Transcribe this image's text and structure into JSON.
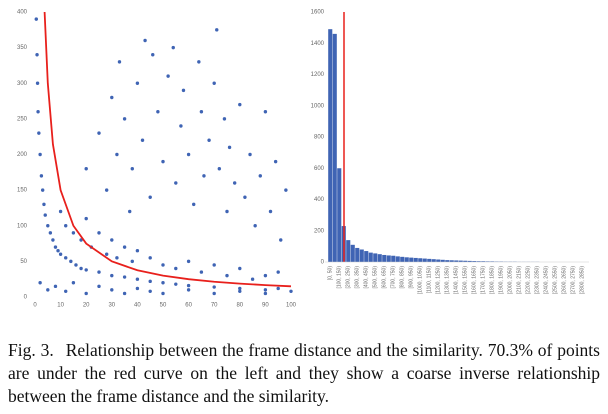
{
  "chart_data": [
    {
      "type": "scatter",
      "color": "#3f64b4",
      "x": [
        0.5,
        0.8,
        1,
        1.2,
        1.5,
        2,
        2.5,
        3,
        3.5,
        4,
        5,
        6,
        7,
        8,
        9,
        10,
        12,
        14,
        16,
        18,
        20,
        25,
        30,
        35,
        40,
        45,
        50,
        55,
        60,
        70,
        80,
        90,
        100,
        2,
        5,
        8,
        12,
        15,
        20,
        25,
        30,
        35,
        40,
        45,
        50,
        60,
        70,
        80,
        90,
        95,
        10,
        12,
        15,
        18,
        20,
        22,
        25,
        28,
        30,
        32,
        35,
        38,
        40,
        45,
        50,
        55,
        60,
        65,
        70,
        75,
        80,
        85,
        90,
        95,
        20,
        25,
        28,
        30,
        32,
        33,
        35,
        37,
        38,
        40,
        42,
        43,
        45,
        46,
        48,
        50,
        52,
        54,
        55,
        57,
        58,
        60,
        62,
        64,
        65,
        66,
        68,
        70,
        71,
        72,
        74,
        75,
        76,
        78,
        80,
        82,
        84,
        86,
        88,
        90,
        92,
        94,
        96,
        98
      ],
      "y": [
        390,
        340,
        300,
        260,
        230,
        200,
        170,
        150,
        130,
        115,
        100,
        90,
        80,
        70,
        65,
        60,
        55,
        50,
        45,
        40,
        38,
        35,
        30,
        28,
        25,
        22,
        20,
        18,
        16,
        14,
        12,
        10,
        8,
        20,
        10,
        15,
        8,
        20,
        5,
        15,
        10,
        5,
        12,
        8,
        5,
        10,
        5,
        8,
        5,
        12,
        120,
        100,
        90,
        80,
        110,
        70,
        90,
        60,
        80,
        55,
        70,
        50,
        65,
        55,
        45,
        40,
        50,
        35,
        45,
        30,
        40,
        25,
        30,
        35,
        180,
        230,
        150,
        280,
        200,
        330,
        250,
        120,
        180,
        300,
        220,
        360,
        140,
        340,
        260,
        190,
        310,
        350,
        160,
        240,
        290,
        200,
        130,
        330,
        260,
        170,
        220,
        300,
        375,
        180,
        250,
        120,
        210,
        160,
        270,
        140,
        200,
        100,
        170,
        260,
        120,
        190,
        80,
        150
      ],
      "curve": {
        "color": "#e8201c",
        "x": [
          3.75,
          5,
          7,
          10,
          15,
          20,
          30,
          40,
          50,
          60,
          70,
          80,
          90,
          100
        ],
        "y": [
          400,
          300,
          214.3,
          150,
          100,
          75,
          50,
          37.5,
          30,
          25,
          21.4,
          18.75,
          16.7,
          15
        ]
      },
      "xlim": [
        0,
        100
      ],
      "xticks": [
        0,
        10,
        20,
        30,
        40,
        50,
        60,
        70,
        80,
        90,
        100
      ],
      "ylim": [
        0,
        400
      ],
      "yticks": [
        0,
        50,
        100,
        150,
        200,
        250,
        300,
        350,
        400
      ]
    },
    {
      "type": "bar",
      "color": "#3f64b4",
      "categories": [
        "[0, 50)",
        null,
        "[100, 150)",
        null,
        "[200, 250)",
        null,
        "[300, 350)",
        null,
        "[400, 450)",
        null,
        "[500, 550)",
        null,
        "[600, 650)",
        null,
        "[700, 750)",
        null,
        "[800, 850)",
        null,
        "[900, 950)",
        null,
        "[1000, 1050)",
        null,
        "[1100, 1150)",
        null,
        "[1200, 1250)",
        null,
        "[1300, 1350)",
        null,
        "[1400, 1450)",
        null,
        "[1500, 1550)",
        null,
        "[1600, 1650)",
        null,
        "[1700, 1750)",
        null,
        "[1800, 1850)",
        null,
        "[1900, 1950)",
        null,
        "[2000, 2050)",
        null,
        "[2100, 2150)",
        null,
        "[2200, 2250)",
        null,
        "[2300, 2350)",
        null,
        "[2400, 2450)",
        null,
        "[2500, 2550)",
        null,
        "[2600, 2650)",
        null,
        "[2700, 2750)",
        null,
        "[2800, 2850)",
        null
      ],
      "values": [
        1490,
        1460,
        600,
        230,
        140,
        110,
        90,
        80,
        70,
        60,
        55,
        50,
        45,
        42,
        40,
        36,
        33,
        30,
        28,
        26,
        24,
        22,
        20,
        18,
        16,
        14,
        12,
        11,
        10,
        9,
        8,
        7,
        6,
        5,
        5,
        4,
        4,
        3,
        3,
        2,
        2,
        2,
        1,
        1,
        1,
        1,
        1,
        0,
        0,
        0,
        0,
        0,
        0,
        0,
        0,
        0,
        0,
        0
      ],
      "ylim": [
        0,
        1600
      ],
      "yticks": [
        0,
        200,
        400,
        600,
        800,
        1000,
        1200,
        1400,
        1600
      ]
    }
  ],
  "caption": {
    "label": "Fig. 3.",
    "text": "Relationship between the frame distance and the similarity. 70.3% of points are under the red curve on the left and they show a coarse inverse relationship between the frame distance and the similarity."
  }
}
